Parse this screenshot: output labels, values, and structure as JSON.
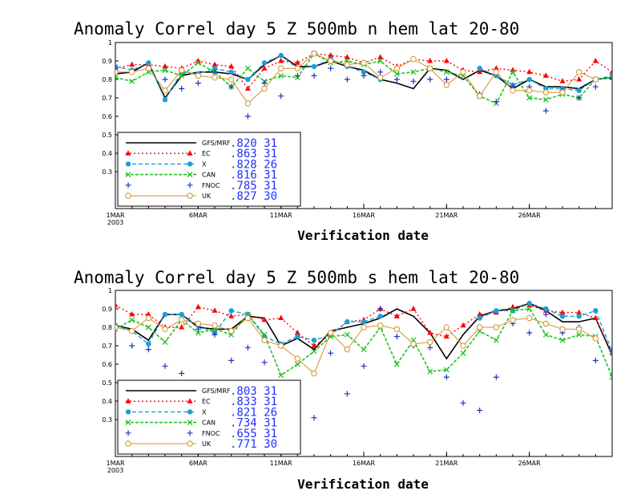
{
  "chart_data": [
    {
      "type": "line",
      "title": "Anomaly Correl  day 5  Z 500mb  n hem  lat 20-80",
      "xlabel": "Verification date",
      "ylabel": "",
      "ylim": [
        0.1,
        1.0
      ],
      "xlim": [
        1,
        31
      ],
      "yticks": [
        "0.3",
        "0.4",
        "0.5",
        "0.6",
        "0.7",
        "0.8",
        "0.9",
        "1"
      ],
      "xticks": [
        {
          "day": 1,
          "label": "1MAR",
          "sub": "2003"
        },
        {
          "day": 6,
          "label": "6MAR",
          "sub": ""
        },
        {
          "day": 11,
          "label": "11MAR",
          "sub": ""
        },
        {
          "day": 16,
          "label": "16MAR",
          "sub": ""
        },
        {
          "day": 21,
          "label": "21MAR",
          "sub": ""
        },
        {
          "day": 26,
          "label": "26MAR",
          "sub": ""
        }
      ],
      "legend": "bottom-left",
      "series": [
        {
          "name": "GFS/MRF",
          "stat": ".820 31",
          "color": "#000000",
          "marker": "none",
          "dash": "",
          "width": 1.6,
          "x": [
            1,
            2,
            3,
            4,
            5,
            6,
            7,
            8,
            9,
            10,
            11,
            12,
            13,
            14,
            15,
            16,
            17,
            18,
            19,
            20,
            21,
            22,
            23,
            24,
            25,
            26,
            27,
            28,
            29,
            30,
            31
          ],
          "y": [
            0.83,
            0.84,
            0.89,
            0.7,
            0.82,
            0.84,
            0.84,
            0.83,
            0.8,
            0.88,
            0.93,
            0.87,
            0.87,
            0.9,
            0.87,
            0.85,
            0.8,
            0.78,
            0.75,
            0.86,
            0.85,
            0.8,
            0.85,
            0.82,
            0.75,
            0.8,
            0.76,
            0.76,
            0.75,
            0.8,
            0.81
          ]
        },
        {
          "name": "EC",
          "stat": ".863 31",
          "color": "#ff0000",
          "marker": "triangle",
          "dash": "2,3",
          "width": 1.4,
          "x": [
            1,
            2,
            3,
            4,
            5,
            6,
            7,
            8,
            9,
            10,
            11,
            12,
            13,
            14,
            15,
            16,
            17,
            18,
            19,
            20,
            21,
            22,
            23,
            24,
            25,
            26,
            27,
            28,
            29,
            30,
            31
          ],
          "y": [
            0.86,
            0.88,
            0.88,
            0.87,
            0.86,
            0.9,
            0.88,
            0.87,
            0.75,
            0.86,
            0.9,
            0.89,
            0.94,
            0.93,
            0.92,
            0.89,
            0.92,
            0.87,
            0.91,
            0.9,
            0.9,
            0.85,
            0.84,
            0.86,
            0.85,
            0.84,
            0.82,
            0.79,
            0.8,
            0.9,
            0.84
          ]
        },
        {
          "name": "X",
          "stat": ".828 26",
          "color": "#1a9fd6",
          "marker": "circle",
          "dash": "5,3",
          "width": 1.4,
          "x": [
            1,
            2,
            3,
            4,
            5,
            6,
            7,
            8,
            9,
            10,
            11,
            12,
            13,
            14,
            15,
            16,
            17,
            18,
            19,
            20,
            21,
            22,
            23,
            24,
            25,
            26,
            27,
            28,
            29,
            30,
            31
          ],
          "y": [
            0.87,
            0.85,
            0.89,
            0.69,
            0.84,
            0.83,
            0.86,
            0.84,
            0.8,
            0.89,
            0.93,
            0.86,
            0.87,
            0.91,
            0.87,
            0.84,
            0.8,
            null,
            null,
            null,
            null,
            null,
            0.86,
            0.82,
            0.77,
            0.8,
            0.75,
            0.75,
            0.74,
            0.8,
            0.82
          ]
        },
        {
          "name": "CAN",
          "stat": ".816 31",
          "color": "#22c322",
          "marker": "x",
          "dash": "4,2",
          "width": 1.6,
          "x": [
            1,
            2,
            3,
            4,
            5,
            6,
            7,
            8,
            9,
            10,
            11,
            12,
            13,
            14,
            15,
            16,
            17,
            18,
            19,
            20,
            21,
            22,
            23,
            24,
            25,
            26,
            27,
            28,
            29,
            30,
            31
          ],
          "y": [
            0.81,
            0.79,
            0.84,
            0.85,
            0.82,
            0.89,
            0.84,
            0.76,
            0.86,
            0.79,
            0.82,
            0.81,
            0.94,
            0.89,
            0.9,
            0.88,
            0.9,
            0.83,
            0.84,
            0.86,
            0.84,
            0.82,
            0.71,
            0.67,
            0.84,
            0.7,
            0.69,
            0.72,
            0.7,
            0.8,
            0.81
          ]
        },
        {
          "name": "FNOC",
          "stat": ".785 31",
          "color": "#2030c8",
          "marker": "plus",
          "dash": "none",
          "width": 1,
          "x": [
            1,
            2,
            3,
            4,
            5,
            6,
            7,
            8,
            9,
            10,
            11,
            12,
            13,
            14,
            15,
            16,
            17,
            18,
            19,
            20,
            21,
            22,
            23,
            24,
            25,
            26,
            27,
            28,
            29,
            30,
            31
          ],
          "y": [
            0.86,
            0.84,
            0.86,
            0.8,
            0.75,
            0.78,
            0.84,
            0.76,
            0.6,
            0.78,
            0.71,
            0.82,
            0.82,
            0.86,
            0.8,
            0.82,
            0.84,
            0.8,
            0.79,
            0.8,
            0.8,
            0.84,
            0.72,
            0.68,
            0.76,
            0.76,
            0.63,
            0.74,
            0.7,
            0.76,
            0.8
          ]
        },
        {
          "name": "UK",
          "stat": ".827 30",
          "color": "#d4902a",
          "marker": "circle-open",
          "dash": "",
          "width": 1,
          "x": [
            1,
            2,
            3,
            4,
            5,
            6,
            7,
            8,
            9,
            10,
            11,
            12,
            13,
            14,
            15,
            16,
            17,
            18,
            19,
            20,
            21,
            22,
            23,
            24,
            25,
            26,
            27,
            28,
            29,
            30,
            31
          ],
          "y": [
            0.84,
            0.84,
            0.86,
            0.74,
            0.85,
            0.82,
            0.81,
            0.8,
            0.67,
            0.75,
            0.86,
            0.86,
            0.94,
            0.9,
            0.88,
            0.89,
            0.81,
            0.86,
            0.91,
            0.86,
            0.77,
            0.84,
            0.71,
            0.84,
            0.74,
            0.74,
            0.73,
            0.73,
            0.84,
            0.8,
            null
          ]
        }
      ]
    },
    {
      "type": "line",
      "title": "Anomaly Correl  day 5  Z 500mb  s hem  lat 20-80",
      "xlabel": "Verification date",
      "ylabel": "",
      "ylim": [
        0.1,
        1.0
      ],
      "xlim": [
        1,
        31
      ],
      "yticks": [
        "0.3",
        "0.4",
        "0.5",
        "0.6",
        "0.7",
        "0.8",
        "0.9",
        "1"
      ],
      "xticks": [
        {
          "day": 1,
          "label": "1MAR",
          "sub": "2003"
        },
        {
          "day": 6,
          "label": "6MAR",
          "sub": ""
        },
        {
          "day": 11,
          "label": "11MAR",
          "sub": ""
        },
        {
          "day": 16,
          "label": "16MAR",
          "sub": ""
        },
        {
          "day": 21,
          "label": "21MAR",
          "sub": ""
        },
        {
          "day": 26,
          "label": "26MAR",
          "sub": ""
        }
      ],
      "legend": "bottom-left",
      "series": [
        {
          "name": "GFS/MRF",
          "stat": ".803 31",
          "color": "#000000",
          "marker": "none",
          "dash": "",
          "width": 1.6,
          "x": [
            1,
            2,
            3,
            4,
            5,
            6,
            7,
            8,
            9,
            10,
            11,
            12,
            13,
            14,
            15,
            16,
            17,
            18,
            19,
            20,
            21,
            22,
            23,
            24,
            25,
            26,
            27,
            28,
            29,
            30,
            31
          ],
          "y": [
            0.81,
            0.79,
            0.73,
            0.87,
            0.87,
            0.8,
            0.79,
            0.79,
            0.86,
            0.85,
            0.7,
            0.74,
            0.68,
            0.78,
            0.8,
            0.82,
            0.85,
            0.9,
            0.86,
            0.77,
            0.63,
            0.76,
            0.86,
            0.89,
            0.9,
            0.93,
            0.89,
            0.83,
            0.83,
            0.85,
            0.65
          ]
        },
        {
          "name": "EC",
          "stat": ".833 31",
          "color": "#ff0000",
          "marker": "triangle",
          "dash": "2,3",
          "width": 1.4,
          "x": [
            1,
            2,
            3,
            4,
            5,
            6,
            7,
            8,
            9,
            10,
            11,
            12,
            13,
            14,
            15,
            16,
            17,
            18,
            19,
            20,
            21,
            22,
            23,
            24,
            25,
            26,
            27,
            28,
            29,
            30,
            31
          ],
          "y": [
            0.92,
            0.87,
            0.87,
            0.8,
            0.8,
            0.91,
            0.89,
            0.86,
            0.87,
            0.84,
            0.85,
            0.77,
            0.7,
            0.76,
            0.83,
            0.84,
            0.9,
            0.86,
            0.9,
            0.77,
            0.75,
            0.81,
            0.87,
            0.88,
            0.91,
            0.92,
            0.89,
            0.88,
            0.88,
            0.85,
            0.66
          ]
        },
        {
          "name": "X",
          "stat": ".821 26",
          "color": "#1a9fd6",
          "marker": "circle",
          "dash": "5,3",
          "width": 1.4,
          "x": [
            1,
            2,
            3,
            4,
            5,
            6,
            7,
            8,
            9,
            10,
            11,
            12,
            13,
            14,
            15,
            16,
            17,
            18,
            19,
            20,
            21,
            22,
            23,
            24,
            25,
            26,
            27,
            28,
            29,
            30,
            31
          ],
          "y": [
            0.81,
            0.78,
            0.71,
            0.87,
            0.87,
            0.81,
            0.77,
            0.89,
            0.87,
            0.75,
            0.71,
            0.75,
            0.73,
            0.76,
            0.83,
            0.83,
            0.86,
            null,
            null,
            null,
            null,
            null,
            0.85,
            0.89,
            0.89,
            0.93,
            0.9,
            0.86,
            0.86,
            0.89,
            0.67
          ]
        },
        {
          "name": "CAN",
          "stat": ".734 31",
          "color": "#22c322",
          "marker": "x",
          "dash": "4,2",
          "width": 1.6,
          "x": [
            1,
            2,
            3,
            4,
            5,
            6,
            7,
            8,
            9,
            10,
            11,
            12,
            13,
            14,
            15,
            16,
            17,
            18,
            19,
            20,
            21,
            22,
            23,
            24,
            25,
            26,
            27,
            28,
            29,
            30,
            31
          ],
          "y": [
            0.79,
            0.84,
            0.8,
            0.72,
            0.84,
            0.77,
            0.79,
            0.76,
            0.87,
            0.76,
            0.54,
            0.6,
            0.67,
            0.75,
            0.76,
            0.68,
            0.8,
            0.6,
            0.73,
            0.56,
            0.57,
            0.66,
            0.78,
            0.73,
            0.89,
            0.9,
            0.76,
            0.73,
            0.76,
            0.75,
            0.53
          ]
        },
        {
          "name": "FNOC",
          "stat": ".655 31",
          "color": "#2030c8",
          "marker": "plus",
          "dash": "none",
          "width": 1,
          "x": [
            1,
            2,
            3,
            4,
            5,
            6,
            7,
            8,
            9,
            10,
            11,
            12,
            13,
            14,
            15,
            16,
            17,
            18,
            19,
            20,
            21,
            22,
            23,
            24,
            25,
            26,
            27,
            28,
            29,
            30,
            31
          ],
          "y": [
            0.81,
            0.7,
            0.68,
            0.59,
            0.55,
            0.79,
            0.76,
            0.62,
            0.69,
            0.61,
            0.46,
            0.39,
            0.31,
            0.66,
            0.44,
            0.59,
            0.9,
            0.75,
            0.7,
            0.69,
            0.53,
            0.39,
            0.35,
            0.53,
            0.82,
            0.77,
            0.87,
            0.77,
            0.8,
            0.62,
            0.67
          ]
        },
        {
          "name": "UK",
          "stat": ".771 30",
          "color": "#d4902a",
          "marker": "circle-open",
          "dash": "",
          "width": 1,
          "x": [
            1,
            2,
            3,
            4,
            5,
            6,
            7,
            8,
            9,
            10,
            11,
            12,
            13,
            14,
            15,
            16,
            17,
            18,
            19,
            20,
            21,
            22,
            23,
            24,
            25,
            26,
            27,
            28,
            29,
            30,
            31
          ],
          "y": [
            0.8,
            0.78,
            0.85,
            0.79,
            0.84,
            0.82,
            0.81,
            0.78,
            0.85,
            0.73,
            0.7,
            0.63,
            0.55,
            0.77,
            0.68,
            0.8,
            0.81,
            0.79,
            0.71,
            0.72,
            0.8,
            0.7,
            0.8,
            0.8,
            0.84,
            0.85,
            0.82,
            0.79,
            0.79,
            0.74,
            null
          ]
        }
      ]
    }
  ]
}
